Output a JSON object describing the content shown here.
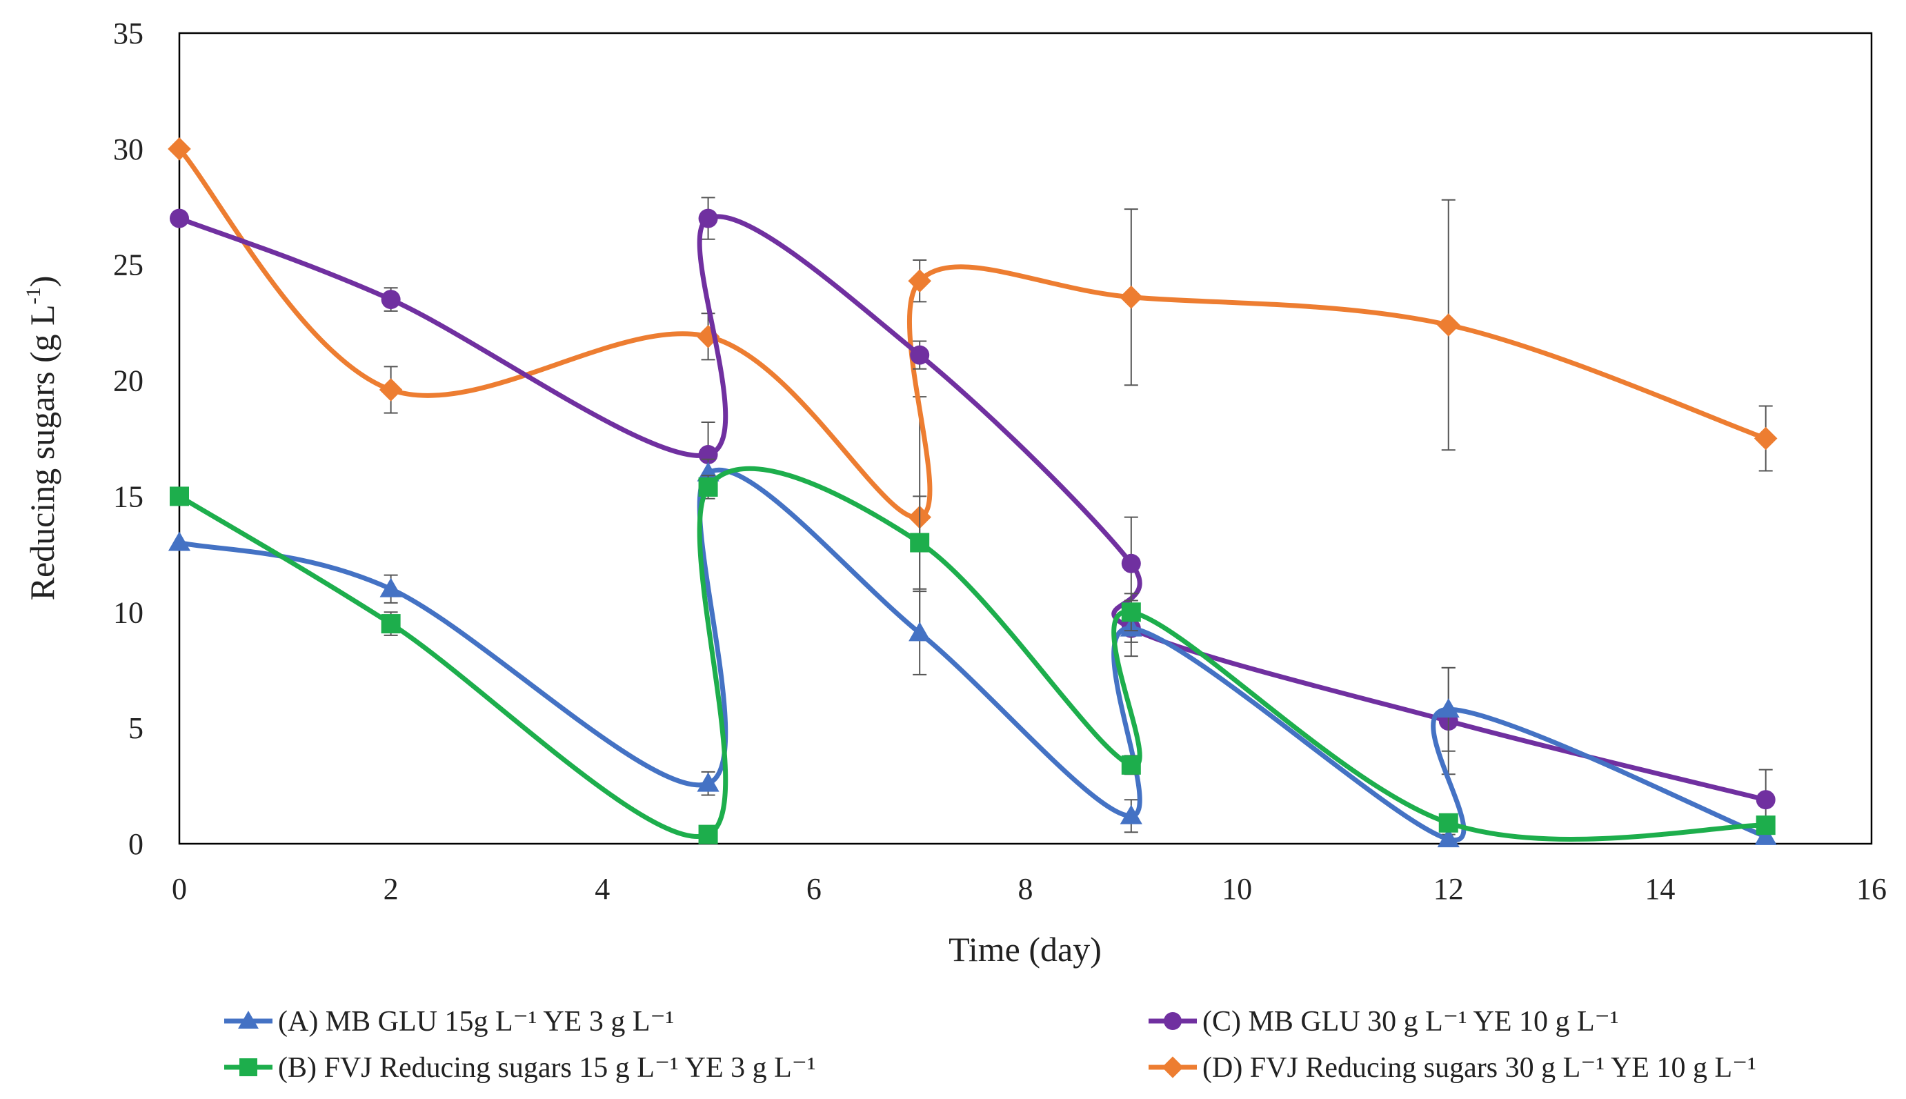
{
  "chart_data": {
    "type": "line",
    "title": "",
    "xlabel": "Time (day)",
    "ylabel": "Reducing sugars (g L",
    "ylabel_sup": "-1",
    "ylabel_end": ")",
    "xlim": [
      0,
      16
    ],
    "ylim": [
      0,
      35
    ],
    "x_ticks": [
      "0",
      "2",
      "4",
      "6",
      "8",
      "10",
      "12",
      "14",
      "16"
    ],
    "y_ticks": [
      "0",
      "5",
      "10",
      "15",
      "20",
      "25",
      "30",
      "35"
    ],
    "grid": false,
    "legend_position": "bottom",
    "series": [
      {
        "name": "(A) MB GLU 15g L⁻¹  YE 3 g L⁻¹",
        "color": "#4472C4",
        "marker": "triangle",
        "points": [
          [
            0,
            13.0
          ],
          [
            2,
            11.0
          ],
          [
            5,
            2.6
          ],
          [
            5,
            16.0
          ],
          [
            7,
            9.1
          ],
          [
            9,
            1.2
          ],
          [
            9,
            9.3
          ],
          [
            12,
            0.2
          ],
          [
            12,
            5.8
          ],
          [
            15,
            0.3
          ]
        ],
        "errors": [
          0,
          0.6,
          0.5,
          0.6,
          1.8,
          0.7,
          1.2,
          0.2,
          1.8,
          0.2
        ]
      },
      {
        "name": "(B) FVJ Reducing sugars 15 g L⁻¹  YE 3 g L⁻¹",
        "color": "#1DAE4C",
        "marker": "square",
        "points": [
          [
            0,
            15.0
          ],
          [
            2,
            9.5
          ],
          [
            5,
            0.4
          ],
          [
            5,
            15.4
          ],
          [
            7,
            13.0
          ],
          [
            9,
            3.4
          ],
          [
            9,
            10.0
          ],
          [
            12,
            0.9
          ],
          [
            15,
            0.8
          ]
        ],
        "errors": [
          0,
          0.5,
          0.2,
          0.5,
          2.0,
          0.4,
          0.8,
          0.3,
          0.2
        ]
      },
      {
        "name": "(C) MB GLU 30 g L⁻¹  YE 10 g L⁻¹",
        "color": "#7030A0",
        "marker": "circle",
        "points": [
          [
            0,
            27.0
          ],
          [
            2,
            23.5
          ],
          [
            5,
            16.8
          ],
          [
            5,
            27.0
          ],
          [
            7,
            21.1
          ],
          [
            9,
            12.1
          ],
          [
            9,
            9.3
          ],
          [
            12,
            5.3
          ],
          [
            15,
            1.9
          ]
        ],
        "errors": [
          0,
          0.5,
          1.4,
          0.9,
          0.6,
          2.0,
          0.6,
          2.3,
          1.3
        ]
      },
      {
        "name": "(D) FVJ Reducing sugars 30 g L⁻¹  YE 10 g L⁻¹",
        "color": "#ED7D31",
        "marker": "diamond",
        "points": [
          [
            0,
            30.0
          ],
          [
            2,
            19.6
          ],
          [
            5,
            21.9
          ],
          [
            7,
            14.1
          ],
          [
            7,
            24.3
          ],
          [
            9,
            23.6
          ],
          [
            12,
            22.4
          ],
          [
            15,
            17.5
          ]
        ],
        "errors": [
          0,
          1.0,
          1.0,
          5.2,
          0.9,
          3.8,
          5.4,
          1.4
        ]
      }
    ]
  }
}
